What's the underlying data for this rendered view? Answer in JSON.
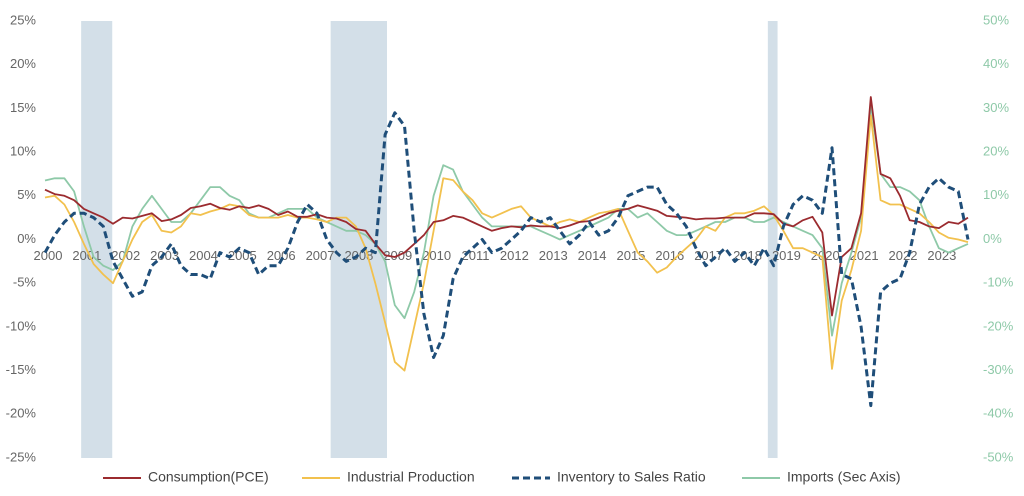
{
  "chart_data": {
    "type": "line",
    "x": [
      2000,
      2000.25,
      2000.5,
      2000.75,
      2001,
      2001.25,
      2001.5,
      2001.75,
      2002,
      2002.25,
      2002.5,
      2002.75,
      2003,
      2003.25,
      2003.5,
      2003.75,
      2004,
      2004.25,
      2004.5,
      2004.75,
      2005,
      2005.25,
      2005.5,
      2005.75,
      2006,
      2006.25,
      2006.5,
      2006.75,
      2007,
      2007.25,
      2007.5,
      2007.75,
      2008,
      2008.25,
      2008.5,
      2008.75,
      2009,
      2009.25,
      2009.5,
      2009.75,
      2010,
      2010.25,
      2010.5,
      2010.75,
      2011,
      2011.25,
      2011.5,
      2011.75,
      2012,
      2012.25,
      2012.5,
      2012.75,
      2013,
      2013.25,
      2013.5,
      2013.75,
      2014,
      2014.25,
      2014.5,
      2014.75,
      2015,
      2015.25,
      2015.5,
      2015.75,
      2016,
      2016.25,
      2016.5,
      2016.75,
      2017,
      2017.25,
      2017.5,
      2017.75,
      2018,
      2018.25,
      2018.5,
      2018.75,
      2019,
      2019.25,
      2019.5,
      2019.75,
      2020,
      2020.25,
      2020.5,
      2020.75,
      2021,
      2021.25,
      2021.5,
      2021.75,
      2022,
      2022.25,
      2022.5,
      2022.75,
      2023,
      2023.25,
      2023.5,
      2023.75
    ],
    "xlim": [
      2000,
      2023.75
    ],
    "xticks": [
      2000,
      2001,
      2002,
      2003,
      2004,
      2005,
      2006,
      2007,
      2008,
      2009,
      2010,
      2011,
      2012,
      2013,
      2014,
      2015,
      2016,
      2017,
      2018,
      2019,
      2020,
      2021,
      2022,
      2023
    ],
    "ylim": [
      -25,
      25
    ],
    "yticks": [
      {
        "value": -25,
        "label": "-25%"
      },
      {
        "value": -20,
        "label": "-20%"
      },
      {
        "value": -15,
        "label": "-15%"
      },
      {
        "value": -10,
        "label": "-10%"
      },
      {
        "value": -5,
        "label": "-5%"
      },
      {
        "value": 0,
        "label": "0%"
      },
      {
        "value": 5,
        "label": "5%"
      },
      {
        "value": 10,
        "label": "10%"
      },
      {
        "value": 15,
        "label": "15%"
      },
      {
        "value": 20,
        "label": "20%"
      },
      {
        "value": 25,
        "label": "25%"
      }
    ],
    "y2lim": [
      -50,
      50
    ],
    "y2ticks": [
      {
        "value": -50,
        "label": "-50%"
      },
      {
        "value": -40,
        "label": "-40%"
      },
      {
        "value": -30,
        "label": "-30%"
      },
      {
        "value": -20,
        "label": "-20%"
      },
      {
        "value": -10,
        "label": "-10%"
      },
      {
        "value": 0,
        "label": "0%"
      },
      {
        "value": 10,
        "label": "10%"
      },
      {
        "value": 20,
        "label": "20%"
      },
      {
        "value": 30,
        "label": "30%"
      },
      {
        "value": 40,
        "label": "40%"
      },
      {
        "value": 50,
        "label": "50%"
      }
    ],
    "shaded_periods": [
      [
        2000.93,
        2001.73
      ],
      [
        2007.35,
        2008.8
      ],
      [
        2018.6,
        2018.85
      ]
    ],
    "shade_color": "#d3dfe8",
    "legend": "bottom",
    "series": [
      {
        "name": "Consumption(PCE)",
        "color": "#9b2b2f",
        "dash": false,
        "values": [
          5.7,
          5.2,
          5.0,
          4.5,
          3.5,
          3.0,
          2.5,
          1.8,
          2.5,
          2.4,
          2.7,
          3.0,
          2.1,
          2.3,
          2.8,
          3.6,
          3.8,
          4.1,
          3.6,
          3.4,
          3.8,
          3.6,
          3.9,
          3.5,
          2.8,
          3.2,
          2.6,
          2.6,
          2.9,
          2.5,
          2.4,
          2.0,
          1.2,
          1.0,
          -0.5,
          -1.8,
          -2.0,
          -1.5,
          -0.5,
          0.5,
          2.0,
          2.2,
          2.7,
          2.5,
          2.0,
          1.5,
          1.0,
          1.3,
          1.5,
          1.4,
          1.6,
          1.5,
          1.5,
          1.3,
          1.6,
          2.0,
          2.1,
          2.5,
          3.0,
          3.3,
          3.5,
          3.9,
          3.6,
          3.3,
          2.7,
          2.6,
          2.5,
          2.3,
          2.4,
          2.4,
          2.5,
          2.5,
          2.5,
          3.0,
          3.0,
          2.9,
          1.8,
          1.5,
          2.2,
          2.6,
          0.8,
          -8.7,
          -2.0,
          -1.0,
          3.0,
          16.3,
          7.5,
          7.0,
          5.0,
          2.2,
          2.0,
          1.5,
          1.3,
          2.0,
          1.8,
          2.5
        ]
      },
      {
        "name": "Industrial Production",
        "color": "#f2c14e",
        "dash": false,
        "values": [
          4.8,
          5.0,
          4.0,
          2.0,
          -0.5,
          -2.8,
          -4.0,
          -5.0,
          -2.5,
          0,
          2.0,
          2.8,
          1.0,
          0.8,
          1.5,
          3.0,
          2.8,
          3.2,
          3.5,
          4.0,
          3.8,
          2.8,
          2.5,
          2.5,
          2.5,
          2.8,
          2.5,
          2.5,
          2.3,
          2.0,
          2.5,
          2.5,
          1.5,
          -1.0,
          -5.0,
          -9.5,
          -14,
          -15,
          -10,
          -5,
          1.0,
          7.0,
          6.8,
          5.5,
          4.5,
          3.0,
          2.5,
          3.0,
          3.5,
          3.8,
          2.5,
          2.0,
          1.5,
          2.0,
          2.3,
          2.0,
          2.5,
          3.0,
          3.2,
          3.5,
          1.0,
          -1.5,
          -2.5,
          -3.8,
          -3.2,
          -2.0,
          -1.0,
          0,
          1.5,
          1.0,
          2.5,
          3.0,
          3.0,
          3.3,
          3.8,
          2.8,
          1.0,
          -1.0,
          -1.0,
          -1.5,
          -2.0,
          -14.8,
          -7.0,
          -3.5,
          1.0,
          14.2,
          4.5,
          4.0,
          4.0,
          3.5,
          3.0,
          2.0,
          0.8,
          0.2,
          0,
          -0.3
        ]
      },
      {
        "name": "Inventory to Sales Ratio",
        "color": "#1f4e79",
        "dash": true,
        "axis": "y2",
        "values": [
          -3,
          1,
          4,
          6,
          6,
          5,
          3,
          -5,
          -9,
          -13,
          -12,
          -6,
          -4,
          -1,
          -6,
          -8,
          -8,
          -9,
          -3,
          -4,
          -2,
          -3,
          -8,
          -6,
          -6,
          -2,
          4,
          8,
          6,
          0,
          -3,
          -5,
          -4,
          -2,
          -3,
          24,
          29,
          26,
          2,
          -17,
          -27,
          -22,
          -9,
          -4,
          -2,
          0,
          -3,
          -2,
          0,
          2,
          5,
          4,
          5,
          2,
          -1,
          1,
          4,
          1,
          2,
          5,
          10,
          11,
          12,
          12,
          8,
          6,
          3,
          -2,
          -6,
          -4,
          -2,
          -5,
          -3,
          -6,
          -2,
          -6,
          3,
          8,
          10,
          9,
          6,
          21,
          -8,
          -9,
          -20,
          -38,
          -12,
          -10,
          -9,
          -3,
          8,
          12,
          14,
          12,
          11,
          0
        ]
      },
      {
        "name": "Imports (Sec Axis)",
        "color": "#8ec9a8",
        "dash": false,
        "axis": "y2",
        "values": [
          13.5,
          14,
          14,
          11,
          3,
          -4,
          -6,
          -7,
          -5,
          3,
          7,
          10,
          7,
          4,
          4,
          6,
          9,
          12,
          12,
          10,
          9,
          6,
          5,
          5,
          6,
          7,
          7,
          7,
          5,
          4,
          3,
          2,
          2,
          1,
          -1,
          -5,
          -15,
          -18,
          -12,
          -3,
          10,
          17,
          16,
          11,
          8,
          5,
          3,
          3,
          3,
          3,
          3,
          2,
          1,
          0,
          1,
          2,
          3,
          4,
          5,
          7,
          7,
          5,
          6,
          4,
          2,
          1,
          1,
          2,
          3,
          4,
          4,
          5,
          5,
          4,
          4,
          5,
          4,
          3,
          2,
          1,
          -2,
          -22,
          -10,
          -3,
          5,
          30.8,
          15,
          12,
          12,
          11,
          9,
          3,
          -2,
          -3,
          -2,
          -1
        ]
      }
    ]
  }
}
